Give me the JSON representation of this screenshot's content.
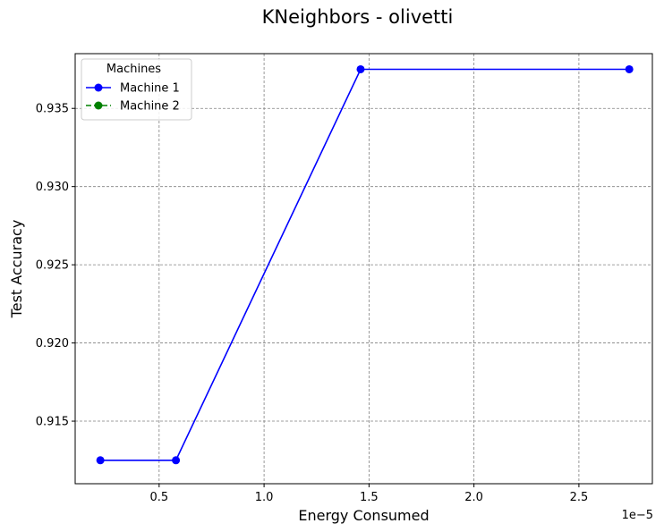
{
  "chart_data": {
    "type": "line",
    "title": "KNeighbors - olivetti",
    "xlabel": "Energy Consumed",
    "ylabel": "Test Accuracy",
    "x_offset_label": "1e−5",
    "xlim": [
      1e-06,
      2.85e-05
    ],
    "ylim": [
      0.911,
      0.9385
    ],
    "xticks": [
      5e-06,
      1e-05,
      1.5e-05,
      2e-05,
      2.5e-05
    ],
    "xtick_labels": [
      "0.5",
      "1.0",
      "1.5",
      "2.0",
      "2.5"
    ],
    "yticks": [
      0.915,
      0.92,
      0.925,
      0.93,
      0.935
    ],
    "ytick_labels": [
      "0.915",
      "0.920",
      "0.925",
      "0.930",
      "0.935"
    ],
    "grid": true,
    "legend_title": "Machines",
    "legend_position": "top-left",
    "series": [
      {
        "name": "Machine 1",
        "color": "#0000ff",
        "line_style": "solid",
        "marker": "circle",
        "x": [
          2.2e-06,
          5.8e-06,
          1.46e-05,
          2.74e-05
        ],
        "y": [
          0.9125,
          0.9125,
          0.9375,
          0.9375
        ]
      },
      {
        "name": "Machine 2",
        "color": "#008000",
        "line_style": "dashed",
        "marker": "circle",
        "x": [],
        "y": []
      }
    ]
  }
}
